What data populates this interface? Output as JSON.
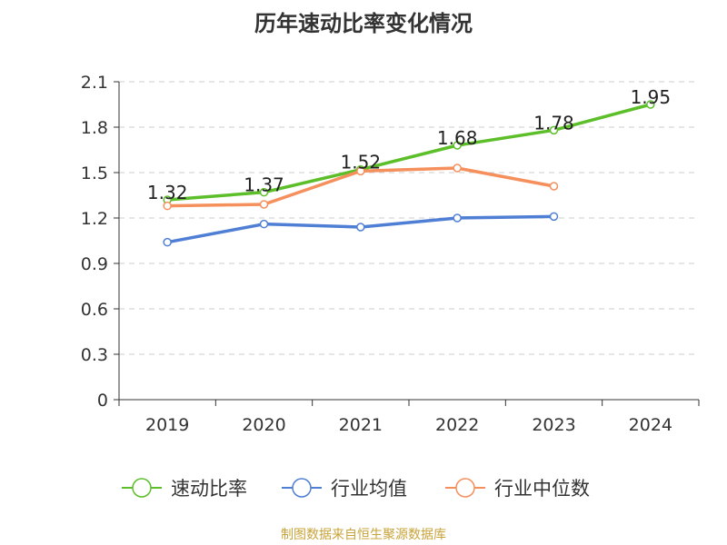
{
  "chart_data": {
    "type": "line",
    "title": "历年速动比率变化情况",
    "categories": [
      "2019",
      "2020",
      "2021",
      "2022",
      "2023",
      "2024"
    ],
    "ylim": [
      0,
      2.1
    ],
    "yticks": [
      "0",
      "0.3",
      "0.6",
      "0.9",
      "1.2",
      "1.5",
      "1.8",
      "2.1"
    ],
    "grid": true,
    "legend_position": "bottom",
    "series": [
      {
        "name": "速动比率",
        "color": "#5cbf2a",
        "values": [
          1.32,
          1.37,
          1.52,
          1.68,
          1.78,
          1.95
        ],
        "labels": [
          "1.32",
          "1.37",
          "1.52",
          "1.68",
          "1.78",
          "1.95"
        ]
      },
      {
        "name": "行业均值",
        "color": "#4f7fd4",
        "values": [
          1.04,
          1.16,
          1.14,
          1.2,
          1.21,
          null
        ]
      },
      {
        "name": "行业中位数",
        "color": "#f58f5c",
        "values": [
          1.28,
          1.29,
          1.51,
          1.53,
          1.41,
          null
        ]
      }
    ]
  },
  "source": "制图数据来自恒生聚源数据库"
}
